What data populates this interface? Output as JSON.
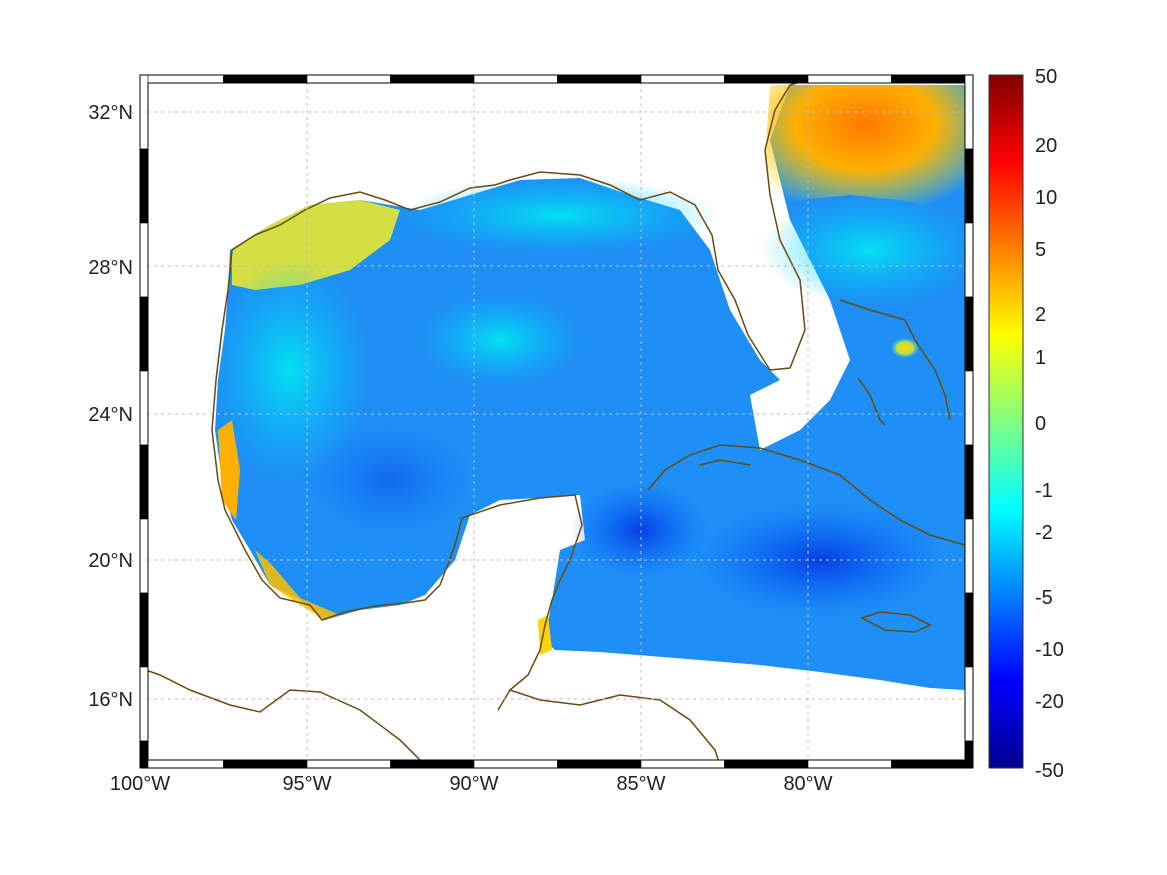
{
  "map": {
    "lon_ticks": [
      "100°W",
      "95°W",
      "90°W",
      "85°W",
      "80°W"
    ],
    "lat_ticks": [
      "32°N",
      "28°N",
      "24°N",
      "20°N",
      "16°N"
    ],
    "extent": {
      "lon": [
        -100,
        -75
      ],
      "lat": [
        14.3,
        33
      ]
    },
    "grid": true,
    "coastline_color": "#6b4a12"
  },
  "colorbar": {
    "tick_labels": [
      "50",
      "20",
      "10",
      "5",
      "2",
      "1",
      "0",
      "-1",
      "-2",
      "-5",
      "-10",
      "-20",
      "-50"
    ],
    "colormap": "jet",
    "range": [
      -50,
      50
    ],
    "orientation": "vertical",
    "placement": "right"
  }
}
